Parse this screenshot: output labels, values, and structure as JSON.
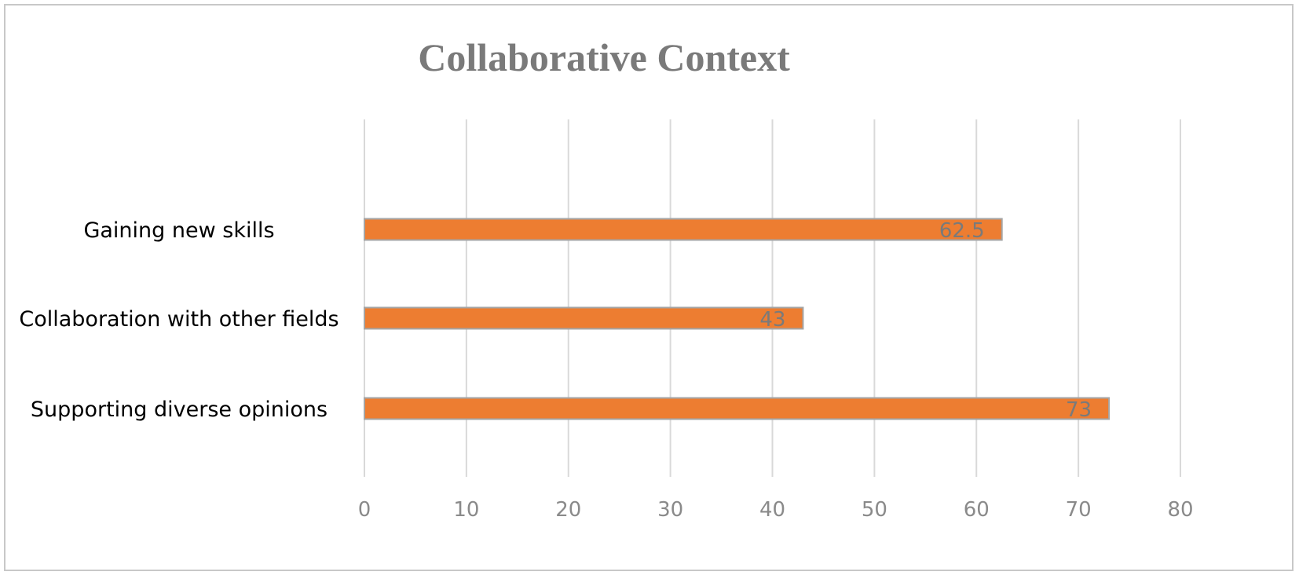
{
  "chart_data": {
    "type": "bar",
    "orientation": "horizontal",
    "title": "Collaborative Context",
    "categories": [
      "Gaining new skills",
      "Collaboration with other fields",
      "Supporting diverse opinions"
    ],
    "values": [
      62.5,
      43,
      73
    ],
    "value_labels": [
      "62.5",
      "43",
      "73"
    ],
    "x_ticks": [
      "0",
      "10",
      "20",
      "30",
      "40",
      "50",
      "60",
      "70",
      "80"
    ],
    "xlim": [
      0,
      80
    ],
    "grid": "vertical",
    "legend": "none",
    "bar_color": "#ED7D31",
    "bar_border_color": "#A5A5A5",
    "gridline_color": "#D9D9D9"
  }
}
